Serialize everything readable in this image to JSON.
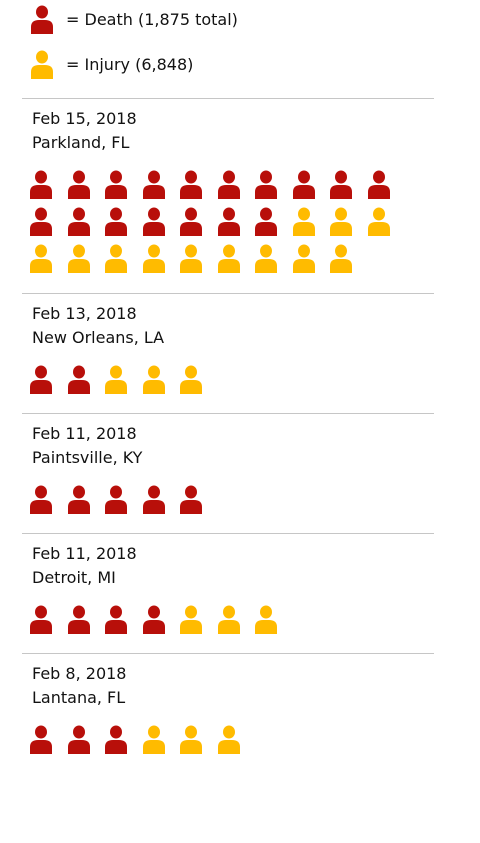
{
  "colors": {
    "death": "#b80f0a",
    "injury": "#ffbb00",
    "divider": "#c6c6c6"
  },
  "legend": {
    "death": {
      "icon": "person-icon",
      "label": "= Death (1,875 total)"
    },
    "injury": {
      "icon": "person-icon",
      "label": "= Injury (6,848)"
    }
  },
  "chart_data": {
    "type": "table",
    "series": [
      {
        "name": "Death",
        "color": "#b80f0a"
      },
      {
        "name": "Injury",
        "color": "#ffbb00"
      }
    ],
    "incidents": [
      {
        "date": "Feb 15, 2018",
        "place": "Parkland, FL",
        "deaths": 17,
        "injuries": 12
      },
      {
        "date": "Feb 13, 2018",
        "place": "New Orleans, LA",
        "deaths": 2,
        "injuries": 3
      },
      {
        "date": "Feb 11, 2018",
        "place": "Paintsville, KY",
        "deaths": 5,
        "injuries": 0
      },
      {
        "date": "Feb 11, 2018",
        "place": "Detroit, MI",
        "deaths": 4,
        "injuries": 3
      },
      {
        "date": "Feb 8, 2018",
        "place": "Lantana, FL",
        "deaths": 3,
        "injuries": 3
      }
    ]
  }
}
